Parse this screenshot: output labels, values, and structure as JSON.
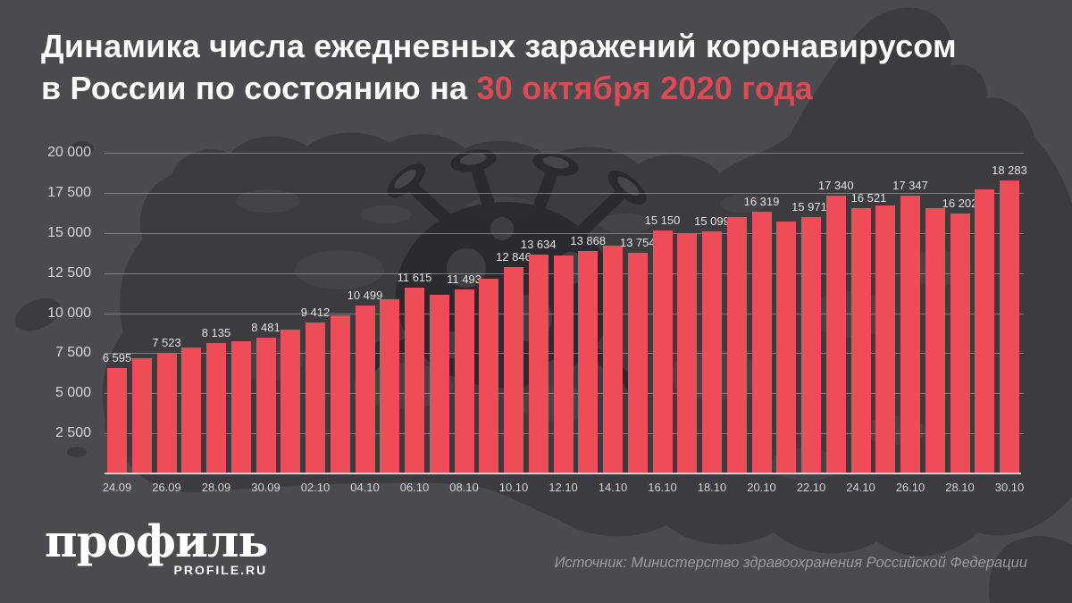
{
  "title": {
    "line1": "Динамика числа ежедневных заражений коронавирусом",
    "line2_prefix": "в России по состоянию на",
    "line2_highlight": "30 октября 2020 года"
  },
  "footer": {
    "logo_word": "профиль",
    "logo_sub": "PROFILE.RU",
    "source": "Источник: Министерство здравоохранения Российской Федерации"
  },
  "colors": {
    "background": "#4a4a4f",
    "map_silhouette": "#3b3b40",
    "virus_silhouette": "#2a2a30",
    "bar": "#ee4c56",
    "accent_red": "#dc4b54",
    "grid": "#97979c",
    "text_light": "#e6e6e9",
    "text_muted": "#9c9ca1"
  },
  "chart_data": {
    "type": "bar",
    "title": "Динамика числа ежедневных заражений коронавирусом в России по состоянию на 30 октября 2020 года",
    "xlabel": "",
    "ylabel": "",
    "ylim": [
      0,
      20000
    ],
    "grid": true,
    "yticks": [
      {
        "value": 20000,
        "label": "20 000"
      },
      {
        "value": 17500,
        "label": "17 500"
      },
      {
        "value": 15000,
        "label": "15 000"
      },
      {
        "value": 12500,
        "label": "12 500"
      },
      {
        "value": 10000,
        "label": "10 000"
      },
      {
        "value": 7500,
        "label": "7 500"
      },
      {
        "value": 5000,
        "label": "5 000"
      },
      {
        "value": 2500,
        "label": "2 500"
      }
    ],
    "xtick_every": 2,
    "points": [
      {
        "date": "24.09",
        "value": 6595,
        "label": "6 595"
      },
      {
        "date": "25.09",
        "value": 7212
      },
      {
        "date": "26.09",
        "value": 7523,
        "label": "7 523"
      },
      {
        "date": "27.09",
        "value": 7867
      },
      {
        "date": "28.09",
        "value": 8135,
        "label": "8 135"
      },
      {
        "date": "29.09",
        "value": 8232
      },
      {
        "date": "30.09",
        "value": 8481,
        "label": "8 481"
      },
      {
        "date": "01.10",
        "value": 8945
      },
      {
        "date": "02.10",
        "value": 9412,
        "label": "9 412"
      },
      {
        "date": "03.10",
        "value": 9859
      },
      {
        "date": "04.10",
        "value": 10499,
        "label": "10 499"
      },
      {
        "date": "05.10",
        "value": 10888
      },
      {
        "date": "06.10",
        "value": 11615,
        "label": "11 615"
      },
      {
        "date": "07.10",
        "value": 11115
      },
      {
        "date": "08.10",
        "value": 11493,
        "label": "11 493"
      },
      {
        "date": "09.10",
        "value": 12126
      },
      {
        "date": "10.10",
        "value": 12846,
        "label": "12 846"
      },
      {
        "date": "11.10",
        "value": 13634,
        "label": "13 634"
      },
      {
        "date": "12.10",
        "value": 13592
      },
      {
        "date": "13.10",
        "value": 13868,
        "label": "13 868"
      },
      {
        "date": "14.10",
        "value": 14231
      },
      {
        "date": "15.10",
        "value": 13754,
        "label": "13 754"
      },
      {
        "date": "16.10",
        "value": 15150,
        "label": "15 150"
      },
      {
        "date": "17.10",
        "value": 14922
      },
      {
        "date": "18.10",
        "value": 15099,
        "label": "15 099"
      },
      {
        "date": "19.10",
        "value": 15982
      },
      {
        "date": "20.10",
        "value": 16319,
        "label": "16 319"
      },
      {
        "date": "21.10",
        "value": 15700
      },
      {
        "date": "22.10",
        "value": 15971,
        "label": "15 971",
        "label_dx": -2
      },
      {
        "date": "23.10",
        "value": 17340,
        "label": "17 340"
      },
      {
        "date": "24.10",
        "value": 16521,
        "label": "16 521",
        "label_dx": 9
      },
      {
        "date": "25.10",
        "value": 16710
      },
      {
        "date": "26.10",
        "value": 17347,
        "label": "17 347"
      },
      {
        "date": "27.10",
        "value": 16550
      },
      {
        "date": "28.10",
        "value": 16202,
        "label": "16 202"
      },
      {
        "date": "29.10",
        "value": 17717
      },
      {
        "date": "30.10",
        "value": 18283,
        "label": "18 283"
      }
    ]
  }
}
